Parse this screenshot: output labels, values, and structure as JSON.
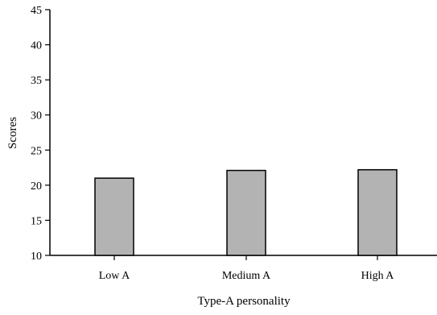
{
  "chart_data": {
    "type": "bar",
    "categories": [
      "Low A",
      "Medium A",
      "High A"
    ],
    "values": [
      21.0,
      22.1,
      22.2
    ],
    "title": "",
    "xlabel": "Type-A personality",
    "ylabel": "Scores",
    "ylim": [
      10,
      45
    ],
    "yticks": [
      10,
      15,
      20,
      25,
      30,
      35,
      40,
      45
    ],
    "grid": false,
    "legend": "none",
    "colors": {
      "bar_fill": "#b3b3b3",
      "bar_stroke": "#000000",
      "axis": "#000000"
    }
  }
}
